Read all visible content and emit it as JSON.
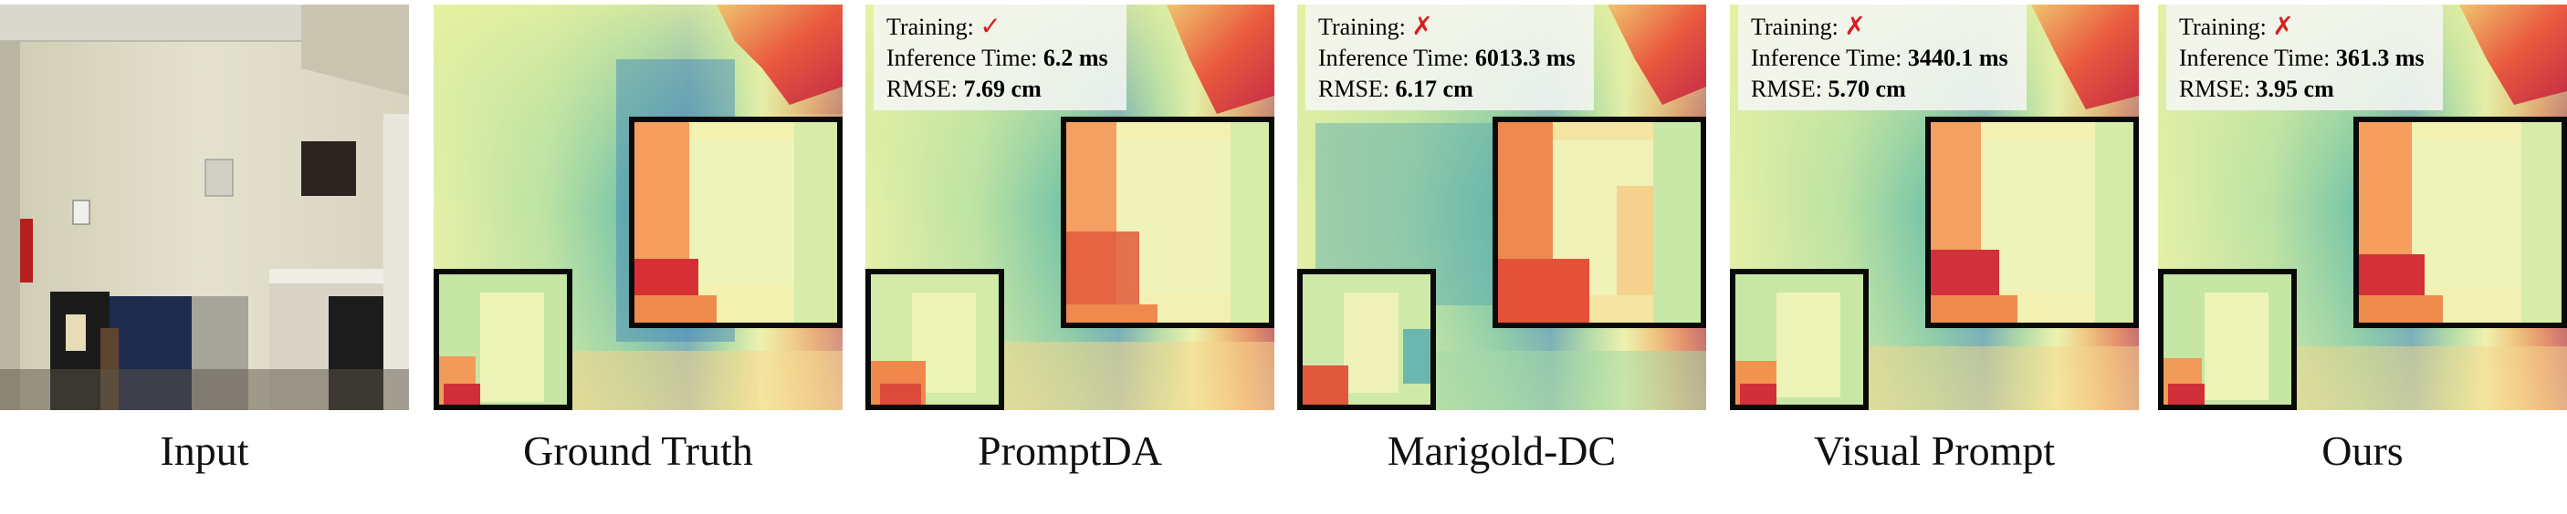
{
  "figure": {
    "panels": [
      {
        "id": "input",
        "caption": "Input"
      },
      {
        "id": "ground-truth",
        "caption": "Ground Truth"
      },
      {
        "id": "promptda",
        "caption": "PromptDA",
        "metrics": {
          "training_label": "Training:",
          "training_mark": "✓",
          "training_color": "#d42020",
          "inference_label": "Inference Time:",
          "inference_value": "6.2 ms",
          "rmse_label": "RMSE:",
          "rmse_value": "7.69 cm"
        }
      },
      {
        "id": "marigold-dc",
        "caption": "Marigold-DC",
        "metrics": {
          "training_label": "Training:",
          "training_mark": "✗",
          "training_color": "#d42020",
          "inference_label": "Inference Time:",
          "inference_value": "6013.3 ms",
          "rmse_label": "RMSE:",
          "rmse_value": "6.17 cm"
        }
      },
      {
        "id": "visual-prompt",
        "caption": "Visual Prompt",
        "metrics": {
          "training_label": "Training:",
          "training_mark": "✗",
          "training_color": "#d42020",
          "inference_label": "Inference Time:",
          "inference_value": "3440.1 ms",
          "rmse_label": "RMSE:",
          "rmse_value": "5.70 cm"
        }
      },
      {
        "id": "ours",
        "caption": "Ours",
        "metrics": {
          "training_label": "Training:",
          "training_mark": "✗",
          "training_color": "#d42020",
          "inference_label": "Inference Time:",
          "inference_value": "361.3 ms",
          "rmse_label": "RMSE:",
          "rmse_value": "3.95 cm"
        }
      }
    ],
    "colors": {
      "zoom_border": "#0a0a0a",
      "check_cross": "#d42020"
    }
  }
}
